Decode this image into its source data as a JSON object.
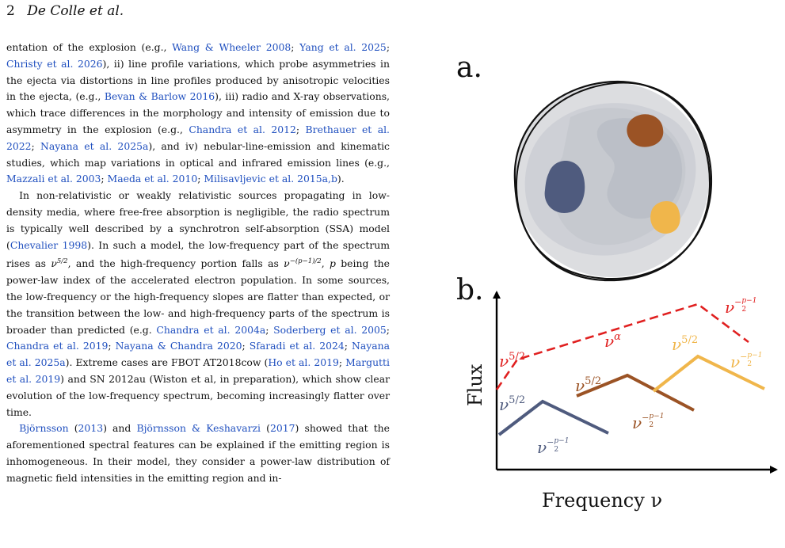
{
  "header": {
    "page_number": "2",
    "authors": "De Colle et al."
  },
  "paragraphs": [
    [
      {
        "t": "entation of the explosion (e.g., "
      },
      {
        "t": "Wang & Wheeler 2008",
        "link": true
      },
      {
        "t": "; "
      },
      {
        "t": "Yang et al. 2025",
        "link": true
      },
      {
        "t": "; "
      },
      {
        "t": "Christy et al. 2026",
        "link": true
      },
      {
        "t": "), ii) line profile variations, which probe asymmetries in the ejecta via distortions in line profiles produced by anisotropic velocities in the ejecta, (e.g., "
      },
      {
        "t": "Bevan & Barlow 2016",
        "link": true
      },
      {
        "t": "), iii) radio and X-ray observations, which trace differences in the morphology and intensity of emission due to asymmetry in the explosion (e.g., "
      },
      {
        "t": "Chandra et al. 2012",
        "link": true
      },
      {
        "t": "; "
      },
      {
        "t": "Brethauer et al. 2022",
        "link": true
      },
      {
        "t": "; "
      },
      {
        "t": "Nayana et al. 2025a",
        "link": true
      },
      {
        "t": "), and iv) nebular-line-emission and kinematic studies, which map variations in optical and infrared emission lines (e.g., "
      },
      {
        "t": "Mazzali et al. 2003",
        "link": true
      },
      {
        "t": "; "
      },
      {
        "t": "Maeda et al. 2010",
        "link": true
      },
      {
        "t": "; "
      },
      {
        "t": "Milisavljevic et al. 2015a,b",
        "link": true
      },
      {
        "t": ")."
      }
    ],
    [
      {
        "t": "In non-relativistic or weakly relativistic sources propagating in low-density media, where free-free absorption is negligible, the radio spectrum is typically well described by a synchrotron self-absorption (SSA) model ("
      },
      {
        "t": "Chevalier 1998",
        "link": true
      },
      {
        "t": "). In such a model, the low-frequency part of the spectrum rises as "
      },
      {
        "t": "ν",
        "i": true
      },
      {
        "t": "5/2",
        "sup": true
      },
      {
        "t": ", and the high-frequency portion falls as "
      },
      {
        "t": "ν",
        "i": true
      },
      {
        "t": "−(p−1)/2",
        "sup": true
      },
      {
        "t": ", "
      },
      {
        "t": "p",
        "i": true
      },
      {
        "t": " being the power-law index of the accelerated electron population. In some sources, the low-frequency or the high-frequency slopes are flatter than expected, or the transition between the low- and high-frequency parts of the spectrum is broader than predicted (e.g. "
      },
      {
        "t": "Chandra et al. 2004a",
        "link": true
      },
      {
        "t": "; "
      },
      {
        "t": "Soderberg et al. 2005",
        "link": true
      },
      {
        "t": "; "
      },
      {
        "t": "Chandra et al. 2019",
        "link": true
      },
      {
        "t": "; "
      },
      {
        "t": "Nayana & Chandra 2020",
        "link": true
      },
      {
        "t": "; "
      },
      {
        "t": "Sfaradi et al. 2024",
        "link": true
      },
      {
        "t": "; "
      },
      {
        "t": "Nayana et al. 2025a",
        "link": true
      },
      {
        "t": "). Extreme cases are FBOT AT2018cow ("
      },
      {
        "t": "Ho et al. 2019",
        "link": true
      },
      {
        "t": "; "
      },
      {
        "t": "Margutti et al. 2019",
        "link": true
      },
      {
        "t": ") and SN 2012au (Wiston et al, in preparation), which show clear evolution of the low-frequency spectrum, becoming increasingly flatter over time."
      }
    ],
    [
      {
        "t": "Björnsson",
        "link": true
      },
      {
        "t": " ("
      },
      {
        "t": "2013",
        "link": true
      },
      {
        "t": ") and "
      },
      {
        "t": "Björnsson & Keshavarzi",
        "link": true
      },
      {
        "t": " ("
      },
      {
        "t": "2017",
        "link": true
      },
      {
        "t": ") showed that the aforementioned spectral features can be explained if the emitting region is inhomogeneous. In their model, they consider a power-law distribution of magnetic field intensities in the emitting region and in-"
      }
    ]
  ],
  "figure": {
    "panel_a_label": "a.",
    "panel_b_label": "b.",
    "y_axis_label": "Flux",
    "x_axis_label": "Frequency ν",
    "blob_colors": {
      "blue": "#4f5b7e",
      "brown": "#9b5325",
      "orange": "#f0b64b",
      "red": "#e02020",
      "axis": "#000000",
      "sphere": "#dcdde0"
    },
    "curve_labels": {
      "red_low": "ν^5/2",
      "red_mid": "ν^α",
      "red_high": "ν^-(p-1)/2",
      "blue_low": "ν^5/2",
      "blue_high": "ν^-(p-1)/2",
      "brown_low": "ν^5/2",
      "brown_high": "ν^-(p-1)/2",
      "orange_low": "ν^5/2",
      "orange_high": "ν^-(p-1)/2"
    }
  }
}
